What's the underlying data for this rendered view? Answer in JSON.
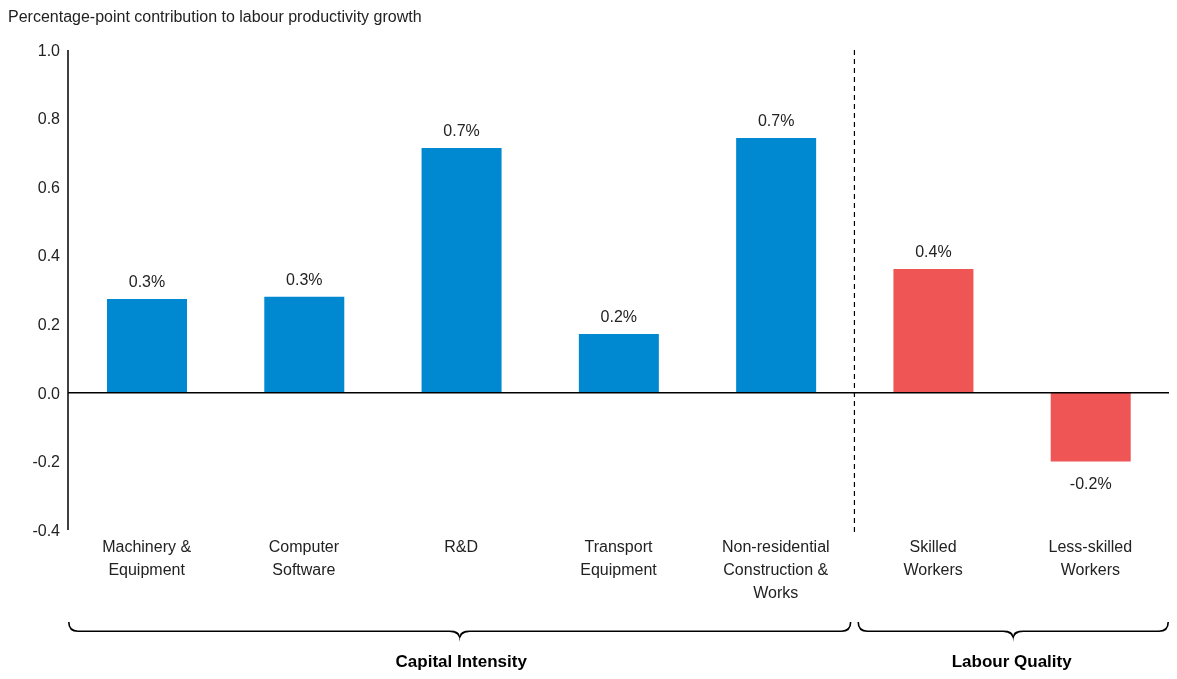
{
  "chart_data": {
    "type": "bar",
    "ylabel": "Percentage-point contribution to labour productivity growth",
    "categories": [
      "Machinery & Equipment",
      "Computer Software",
      "R&D",
      "Transport Equipment",
      "Non-residential Construction & Works",
      "Skilled Workers",
      "Less-skilled Workers"
    ],
    "values": [
      0.274,
      0.28,
      0.714,
      0.172,
      0.743,
      0.361,
      -0.2
    ],
    "colors": [
      "#0088d1",
      "#0088d1",
      "#0088d1",
      "#0088d1",
      "#0088d1",
      "#f05555",
      "#f05555"
    ],
    "value_labels": [
      "0.3%",
      "0.3%",
      "0.7%",
      "0.2%",
      "0.7%",
      "0.4%",
      "-0.2%"
    ],
    "ylim": [
      -0.4,
      1.0
    ],
    "yticks": [
      {
        "value": -0.4,
        "label": "-0.4"
      },
      {
        "value": -0.2,
        "label": "-0.2"
      },
      {
        "value": 0,
        "label": "0.0"
      },
      {
        "value": 0.2,
        "label": "0.2"
      },
      {
        "value": 0.4,
        "label": "0.4"
      },
      {
        "value": 0.6,
        "label": "0.6"
      },
      {
        "value": 0.8,
        "label": "0.8"
      },
      {
        "value": 1.0,
        "label": "1.0"
      }
    ],
    "annotations": [
      "Capital Intensity",
      "Labour Quality"
    ],
    "ref_lines": [
      {
        "axis": "y",
        "value": 0,
        "color": "#000000"
      }
    ],
    "legend": false
  }
}
